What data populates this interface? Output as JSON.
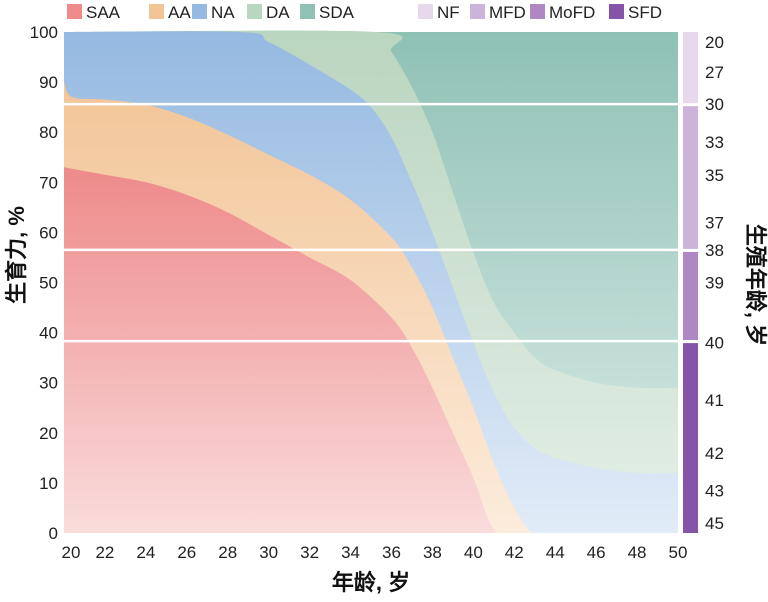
{
  "chart_data": {
    "type": "area",
    "title": "",
    "xlabel": "年龄, 岁",
    "ylabel": "生育力, %",
    "y2label": "生殖年龄, 岁",
    "xlim": [
      20,
      50
    ],
    "ylim": [
      0,
      100
    ],
    "xticks": [
      20,
      22,
      24,
      26,
      28,
      30,
      32,
      34,
      36,
      38,
      40,
      42,
      44,
      46,
      48,
      50
    ],
    "yticks": [
      0,
      10,
      20,
      30,
      40,
      50,
      60,
      70,
      80,
      90,
      100
    ],
    "grid": false,
    "legend_placement": "top",
    "series_note": "cumulative upper boundaries (%) by age",
    "series": [
      {
        "name": "SAA",
        "color": "#ee8a8a",
        "light": "#fadcdc",
        "points": [
          [
            20,
            73
          ],
          [
            22,
            71.5
          ],
          [
            24,
            70
          ],
          [
            26,
            67.5
          ],
          [
            28,
            64
          ],
          [
            30,
            59.5
          ],
          [
            32,
            55
          ],
          [
            34,
            50.5
          ],
          [
            36,
            43
          ],
          [
            37,
            37
          ],
          [
            38,
            29
          ],
          [
            39,
            20
          ],
          [
            40,
            11
          ],
          [
            40.7,
            3
          ],
          [
            41.1,
            0
          ]
        ]
      },
      {
        "name": "AA",
        "color": "#f2c597",
        "light": "#fcecdc",
        "points": [
          [
            20,
            90
          ],
          [
            20.4,
            87
          ],
          [
            22,
            86.5
          ],
          [
            24,
            85.5
          ],
          [
            26,
            83
          ],
          [
            28,
            79.5
          ],
          [
            30,
            75.5
          ],
          [
            32,
            71.5
          ],
          [
            34,
            66.5
          ],
          [
            36,
            59
          ],
          [
            37,
            53
          ],
          [
            38,
            45
          ],
          [
            39,
            35
          ],
          [
            40,
            25
          ],
          [
            41,
            14
          ],
          [
            42,
            5
          ],
          [
            42.8,
            0
          ]
        ]
      },
      {
        "name": "NA",
        "color": "#95b9e1",
        "light": "#e2ecf8",
        "points": [
          [
            20,
            100
          ],
          [
            28.6,
            100
          ],
          [
            30,
            98
          ],
          [
            32,
            93.5
          ],
          [
            34,
            88.5
          ],
          [
            35,
            85
          ],
          [
            36,
            79
          ],
          [
            37,
            70
          ],
          [
            38,
            60
          ],
          [
            39,
            49
          ],
          [
            40,
            38
          ],
          [
            41,
            28
          ],
          [
            42,
            21
          ],
          [
            43,
            17
          ],
          [
            44,
            15
          ],
          [
            46,
            13
          ],
          [
            48,
            12
          ],
          [
            50,
            12
          ]
        ]
      },
      {
        "name": "DA",
        "color": "#bad5c0",
        "light": "#e4efe7",
        "points": [
          [
            20,
            100
          ],
          [
            35.2,
            100
          ],
          [
            36,
            96
          ],
          [
            37,
            89
          ],
          [
            38,
            80
          ],
          [
            39,
            68
          ],
          [
            40,
            56
          ],
          [
            41,
            46
          ],
          [
            42,
            40
          ],
          [
            43,
            35
          ],
          [
            44,
            32.5
          ],
          [
            46,
            30
          ],
          [
            48,
            29
          ],
          [
            50,
            29
          ]
        ]
      },
      {
        "name": "SDA",
        "color": "#8fc1b5",
        "light": "#dcece8",
        "points": [
          [
            20,
            100
          ],
          [
            50,
            100
          ]
        ]
      }
    ],
    "reproductive_age_axis": {
      "segments": [
        {
          "name": "NF",
          "color": "#e6d9ee",
          "from_pct": 100,
          "to_pct": 85.6
        },
        {
          "name": "MFD",
          "color": "#cbb3da",
          "from_pct": 85.6,
          "to_pct": 56.5
        },
        {
          "name": "MoFD",
          "color": "#ae87c4",
          "from_pct": 56.5,
          "to_pct": 38.3
        },
        {
          "name": "SFD",
          "color": "#8553a8",
          "from_pct": 38.3,
          "to_pct": 0
        }
      ],
      "labels": [
        {
          "age": "20",
          "pct": 98
        },
        {
          "age": "27",
          "pct": 92
        },
        {
          "age": "30",
          "pct": 85.6
        },
        {
          "age": "33",
          "pct": 78
        },
        {
          "age": "35",
          "pct": 71.5
        },
        {
          "age": "37",
          "pct": 62
        },
        {
          "age": "38",
          "pct": 56.5
        },
        {
          "age": "39",
          "pct": 50
        },
        {
          "age": "40",
          "pct": 38
        },
        {
          "age": "41",
          "pct": 26.5
        },
        {
          "age": "42",
          "pct": 16
        },
        {
          "age": "43",
          "pct": 8.5
        },
        {
          "age": "45",
          "pct": 2
        }
      ],
      "divider_lines_pct": [
        85.6,
        56.5,
        38.3
      ]
    }
  }
}
